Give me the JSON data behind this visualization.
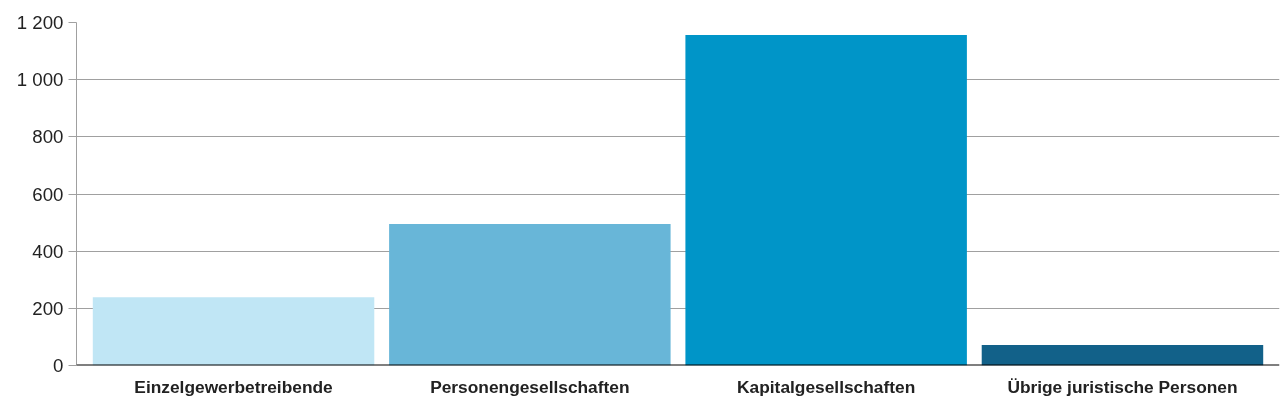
{
  "chart_data": {
    "type": "bar",
    "categories": [
      "Einzelgewerbetreibende",
      "Personengesellschaften",
      "Kapitalgesellschaften",
      "Übrige juristische Personen"
    ],
    "values": [
      239,
      495,
      1156,
      72
    ],
    "colors": [
      "#c0e6f5",
      "#68b6d8",
      "#0095c8",
      "#126189"
    ],
    "ylim": [
      0,
      1200
    ],
    "yticks": [
      0,
      200,
      400,
      600,
      800,
      {
        "value": 1000,
        "label": "1 000"
      },
      {
        "value": 1200,
        "label": "1 200"
      }
    ],
    "grid": "y"
  }
}
